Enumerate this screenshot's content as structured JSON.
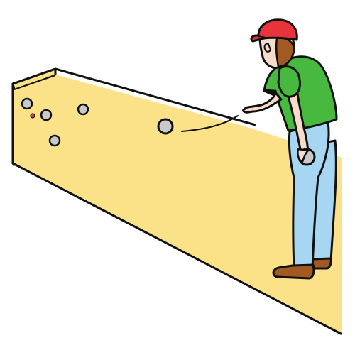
{
  "scene": {
    "subject": "petanque-player",
    "colors": {
      "background": "#ffffff",
      "court": "#fbe289",
      "court_wall": "#fbe289",
      "outline": "#111111",
      "cap": "#e8333a",
      "shirt": "#47b93f",
      "trousers": "#a6d6f1",
      "skin": "#f7dccc",
      "hair": "#a35a22",
      "shoes": "#a35a22",
      "boule": "#c9c9c9",
      "jack": "#e8333a"
    },
    "icons": [
      "player-figure",
      "boule",
      "jack-ball",
      "court"
    ]
  }
}
